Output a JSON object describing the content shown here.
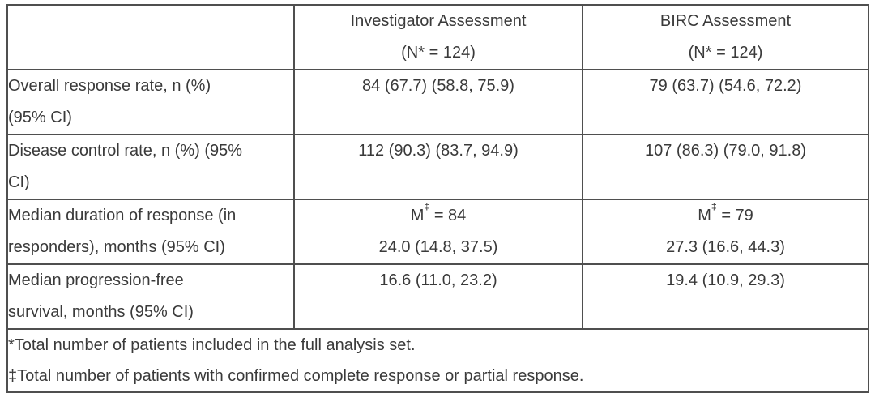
{
  "table": {
    "columns": [
      {
        "key": "label",
        "header_lines": []
      },
      {
        "key": "investigator",
        "header_lines": [
          "Investigator Assessment",
          "(N* = 124)"
        ]
      },
      {
        "key": "birc",
        "header_lines": [
          "BIRC Assessment",
          "(N* = 124)"
        ]
      }
    ],
    "rows": [
      {
        "label_lines": [
          "Overall response rate, n (%)",
          "(95% CI)"
        ],
        "investigator_lines": [
          "84 (67.7) (58.8, 75.9)"
        ],
        "birc_lines": [
          "79 (63.7) (54.6, 72.2)"
        ]
      },
      {
        "label_lines": [
          "Disease control rate, n (%) (95%",
          "CI)"
        ],
        "investigator_lines": [
          "112 (90.3) (83.7, 94.9)"
        ],
        "birc_lines": [
          "107 (86.3) (79.0, 91.8)"
        ]
      },
      {
        "label_lines": [
          "Median duration of response (in",
          "responders), months (95% CI)"
        ],
        "investigator_lines": [
          "M‡ = 84",
          "24.0 (14.8, 37.5)"
        ],
        "birc_lines": [
          "M‡ = 79",
          "27.3 (16.6, 44.3)"
        ]
      },
      {
        "label_lines": [
          "Median progression-free",
          "survival, months (95% CI)"
        ],
        "investigator_lines": [
          "16.6 (11.0, 23.2)"
        ],
        "birc_lines": [
          "19.4 (10.9, 29.3)"
        ]
      }
    ],
    "footnotes": [
      "*Total number of patients included in the full analysis set.",
      "‡Total number of patients with confirmed complete response or partial response."
    ]
  },
  "colors": {
    "border": "#4f4f4f",
    "text": "#3a3a3a",
    "background": "#ffffff"
  }
}
